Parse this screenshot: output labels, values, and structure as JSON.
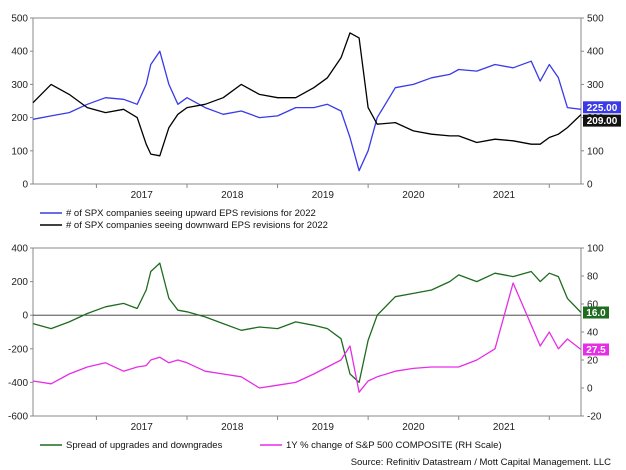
{
  "source": "Source: Refinitiv Datastream / Mott Capital Management. LLC",
  "colors": {
    "upward": "#3a3ae8",
    "downward": "#000000",
    "spread": "#1f6b1f",
    "sp500": "#e62ee6"
  },
  "chart_data": [
    {
      "type": "line",
      "title": "",
      "years": [
        "2017",
        "2018",
        "2019",
        "2020",
        "2021"
      ],
      "ylim": [
        0,
        500
      ],
      "yticks": [
        0,
        100,
        200,
        300,
        400,
        500
      ],
      "y2ticks": [
        0,
        100,
        200,
        300,
        400,
        500
      ],
      "x_range": [
        2016.3,
        2022.35
      ],
      "series": [
        {
          "name": "# of SPX companies seeing upward EPS revisions for 2022",
          "color": "#3a3ae8",
          "last_value": "225.00",
          "x": [
            2016.3,
            2016.5,
            2016.7,
            2016.9,
            2017.1,
            2017.3,
            2017.45,
            2017.55,
            2017.6,
            2017.7,
            2017.8,
            2017.9,
            2018.0,
            2018.2,
            2018.4,
            2018.6,
            2018.8,
            2019.0,
            2019.2,
            2019.4,
            2019.55,
            2019.7,
            2019.8,
            2019.9,
            2020.0,
            2020.1,
            2020.3,
            2020.5,
            2020.7,
            2020.9,
            2021.0,
            2021.2,
            2021.4,
            2021.6,
            2021.8,
            2021.9,
            2022.0,
            2022.1,
            2022.2,
            2022.35
          ],
          "values": [
            195,
            205,
            215,
            240,
            260,
            255,
            240,
            300,
            360,
            400,
            300,
            240,
            260,
            230,
            210,
            220,
            200,
            205,
            230,
            230,
            240,
            220,
            140,
            40,
            100,
            200,
            290,
            300,
            320,
            330,
            345,
            340,
            360,
            350,
            370,
            310,
            360,
            320,
            230,
            225
          ]
        },
        {
          "name": "# of SPX companies seeing downward EPS revisions for 2022",
          "color": "#000000",
          "last_value": "209.00",
          "x": [
            2016.3,
            2016.5,
            2016.7,
            2016.9,
            2017.1,
            2017.3,
            2017.45,
            2017.55,
            2017.6,
            2017.7,
            2017.8,
            2017.9,
            2018.0,
            2018.2,
            2018.4,
            2018.6,
            2018.8,
            2019.0,
            2019.2,
            2019.4,
            2019.55,
            2019.7,
            2019.8,
            2019.9,
            2020.0,
            2020.1,
            2020.3,
            2020.5,
            2020.7,
            2020.9,
            2021.0,
            2021.2,
            2021.4,
            2021.6,
            2021.8,
            2021.9,
            2022.0,
            2022.1,
            2022.2,
            2022.35
          ],
          "values": [
            245,
            300,
            270,
            230,
            215,
            225,
            200,
            120,
            90,
            85,
            170,
            210,
            230,
            240,
            260,
            300,
            270,
            260,
            260,
            290,
            320,
            380,
            455,
            440,
            230,
            180,
            185,
            160,
            150,
            145,
            145,
            125,
            135,
            130,
            120,
            120,
            140,
            150,
            170,
            209
          ]
        }
      ]
    },
    {
      "type": "line",
      "title": "",
      "years": [
        "2017",
        "2018",
        "2019",
        "2020",
        "2021"
      ],
      "ylim": [
        -600,
        400
      ],
      "y2lim": [
        -20,
        100
      ],
      "yticks": [
        -600,
        -400,
        -200,
        0,
        200,
        400
      ],
      "y2ticks": [
        -20,
        0,
        20,
        40,
        60,
        80,
        100
      ],
      "x_range": [
        2016.3,
        2022.35
      ],
      "series": [
        {
          "name": "Spread of upgrades and downgrades",
          "color": "#1f6b1f",
          "axis": "left",
          "last_value": "16.0",
          "x": [
            2016.3,
            2016.5,
            2016.7,
            2016.9,
            2017.1,
            2017.3,
            2017.45,
            2017.55,
            2017.6,
            2017.7,
            2017.8,
            2017.9,
            2018.0,
            2018.2,
            2018.4,
            2018.6,
            2018.8,
            2019.0,
            2019.2,
            2019.4,
            2019.55,
            2019.7,
            2019.8,
            2019.9,
            2020.0,
            2020.1,
            2020.3,
            2020.5,
            2020.7,
            2020.9,
            2021.0,
            2021.2,
            2021.4,
            2021.6,
            2021.8,
            2021.9,
            2022.0,
            2022.1,
            2022.2,
            2022.35
          ],
          "values": [
            -50,
            -80,
            -40,
            10,
            50,
            70,
            40,
            150,
            260,
            310,
            100,
            30,
            20,
            -10,
            -50,
            -90,
            -70,
            -80,
            -40,
            -60,
            -80,
            -140,
            -350,
            -400,
            -150,
            0,
            110,
            130,
            150,
            200,
            240,
            200,
            250,
            230,
            260,
            200,
            250,
            230,
            100,
            16
          ]
        },
        {
          "name": "1Y % change of S&P 500 COMPOSITE (RH Scale)",
          "color": "#e62ee6",
          "axis": "right",
          "last_value": "27.5",
          "x": [
            2016.3,
            2016.5,
            2016.7,
            2016.9,
            2017.1,
            2017.3,
            2017.45,
            2017.55,
            2017.6,
            2017.7,
            2017.8,
            2017.9,
            2018.0,
            2018.2,
            2018.4,
            2018.6,
            2018.8,
            2019.0,
            2019.2,
            2019.4,
            2019.55,
            2019.7,
            2019.8,
            2019.9,
            2020.0,
            2020.1,
            2020.3,
            2020.5,
            2020.7,
            2020.9,
            2021.0,
            2021.2,
            2021.4,
            2021.6,
            2021.8,
            2021.9,
            2022.0,
            2022.1,
            2022.2,
            2022.35
          ],
          "values": [
            5,
            3,
            10,
            15,
            18,
            12,
            15,
            16,
            20,
            22,
            18,
            20,
            18,
            12,
            10,
            8,
            0,
            2,
            4,
            10,
            15,
            20,
            30,
            -3,
            5,
            8,
            12,
            14,
            15,
            15,
            15,
            20,
            28,
            75,
            45,
            30,
            40,
            28,
            35,
            27.5
          ]
        }
      ]
    }
  ]
}
